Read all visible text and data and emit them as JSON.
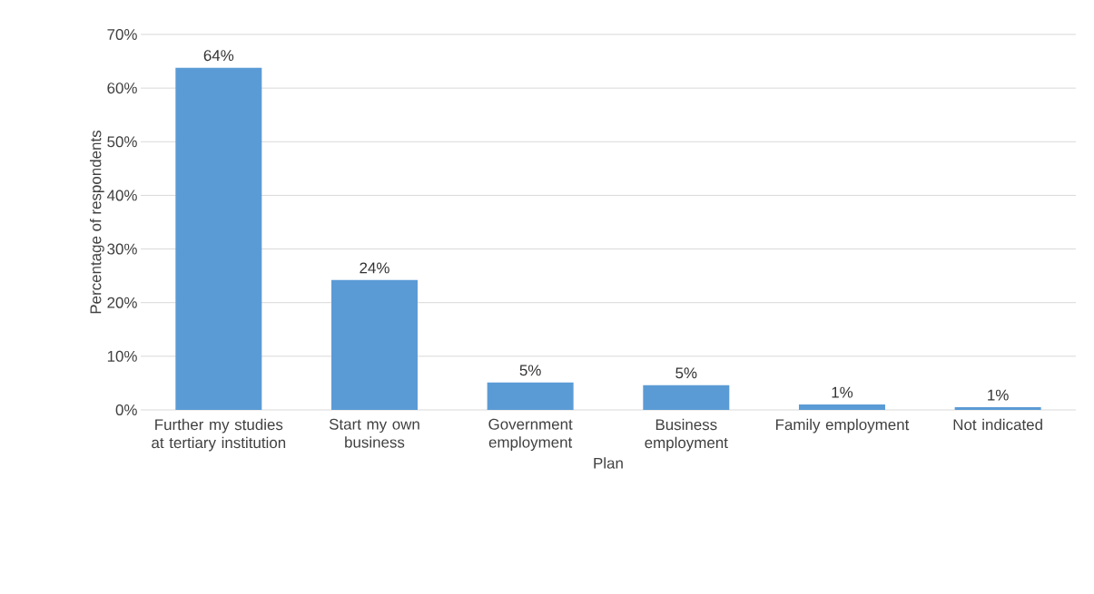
{
  "chart_data": {
    "type": "bar",
    "categories": [
      "Further my studies at tertiary institution",
      "Start my own business",
      "Government employment",
      "Business employment",
      "Family employment",
      "Not indicated"
    ],
    "values": [
      63.8,
      24.2,
      5.1,
      4.6,
      1.0,
      0.5
    ],
    "value_labels": [
      "64%",
      "24%",
      "5%",
      "5%",
      "1%",
      "1%"
    ],
    "color": "#5b9bd5",
    "xlabel": "Plan",
    "ylabel": "Percentage of respondents",
    "ylim": [
      0,
      70
    ],
    "yticks": [
      {
        "value": 0,
        "label": "0%"
      },
      {
        "value": 10,
        "label": "10%"
      },
      {
        "value": 20,
        "label": "20%"
      },
      {
        "value": 30,
        "label": "30%"
      },
      {
        "value": 40,
        "label": "40%"
      },
      {
        "value": 50,
        "label": "50%"
      },
      {
        "value": 60,
        "label": "60%"
      },
      {
        "value": 70,
        "label": "70%"
      }
    ],
    "grid": "y"
  }
}
